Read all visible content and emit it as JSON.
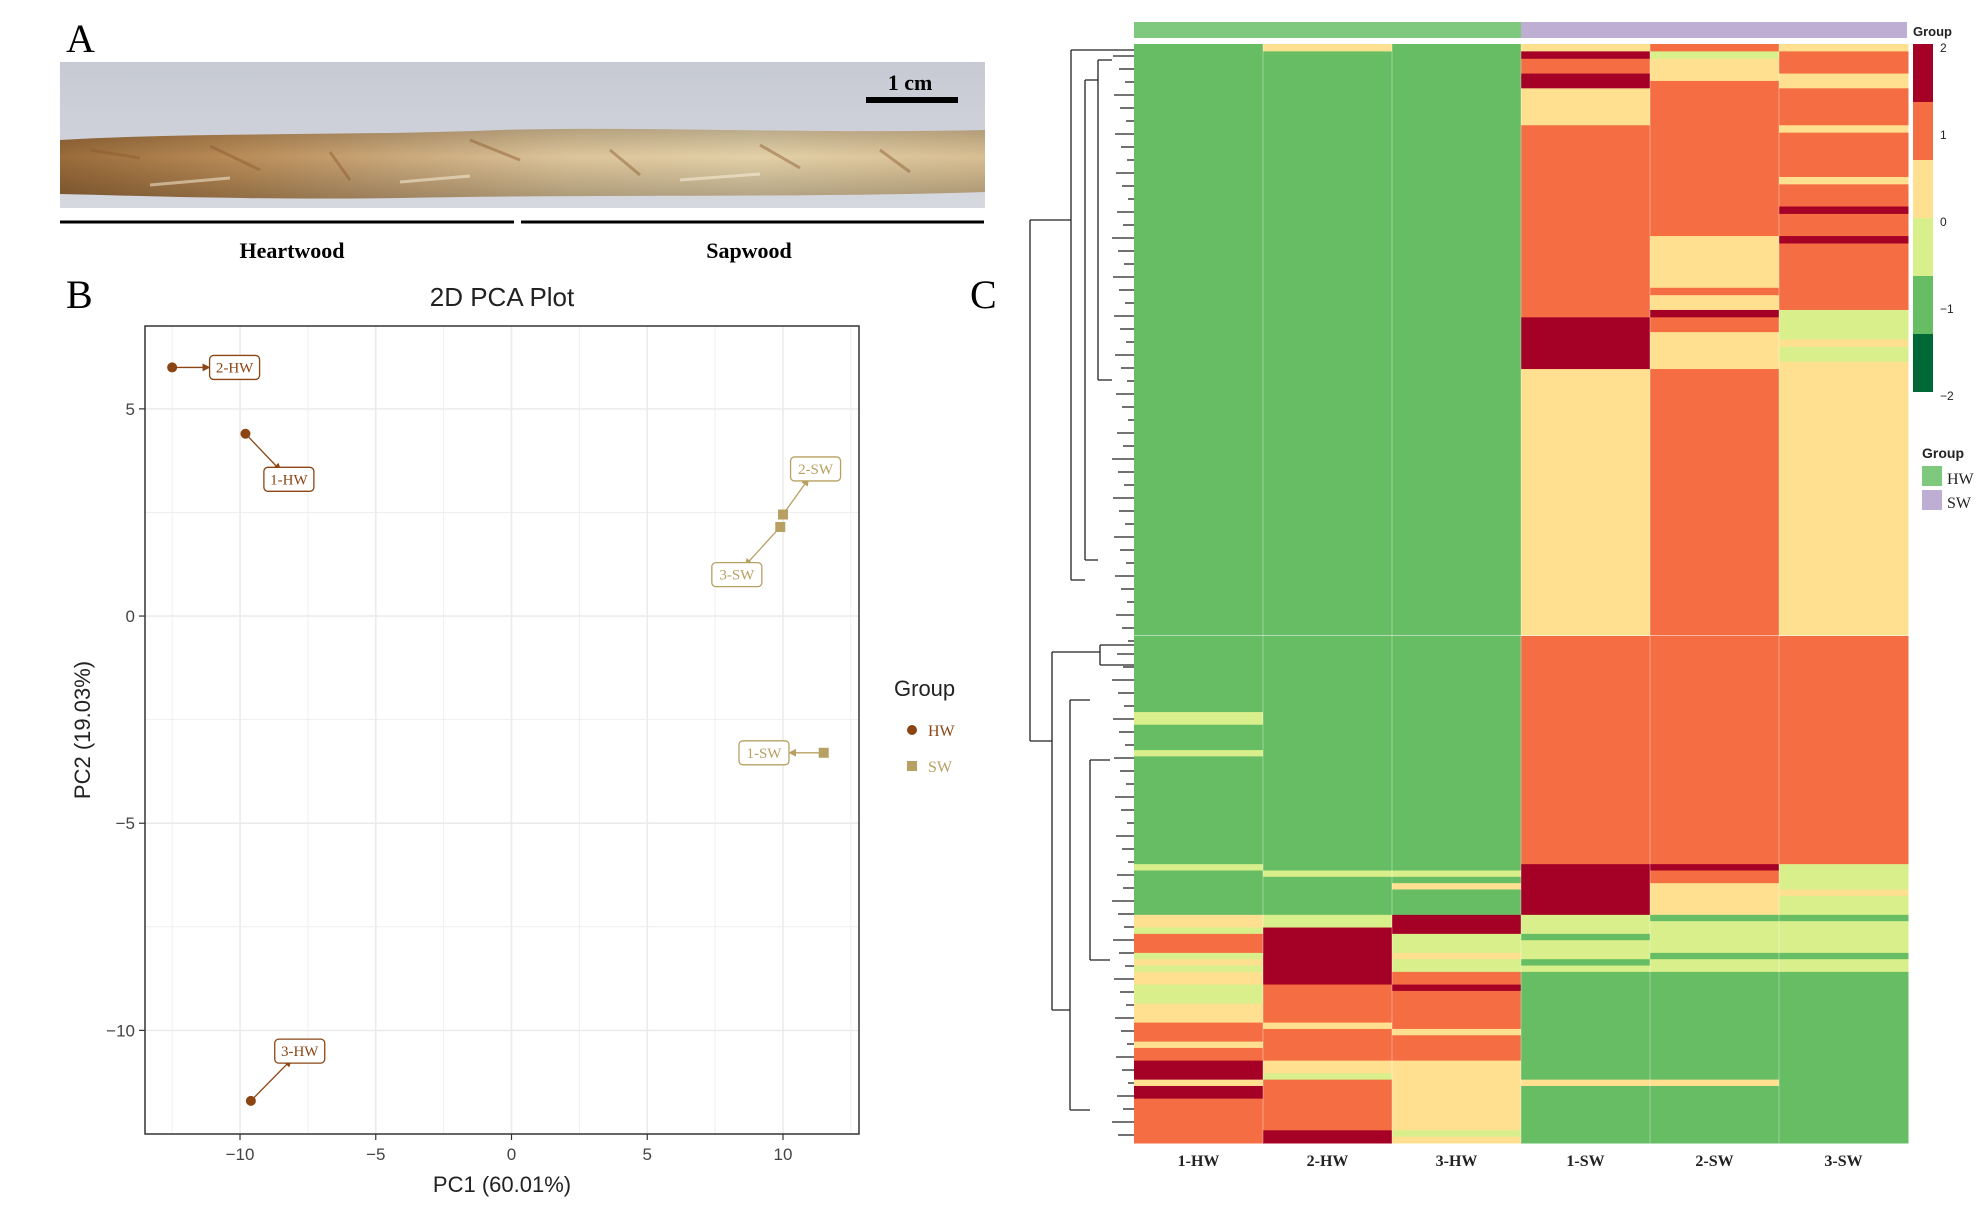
{
  "panels": {
    "a": "A",
    "b": "B",
    "c": "C"
  },
  "photo": {
    "scale_label": "1 cm",
    "regions": [
      "Heartwood",
      "Sapwood"
    ]
  },
  "colors": {
    "hw": "#8B4513",
    "sw": "#B8A062",
    "grid": "#EBEBEB",
    "panel_border": "#333333",
    "heat": {
      "c2": "#A50026",
      "c1": "#F46D43",
      "c0": "#FEE090",
      "cm05": "#D9EF8B",
      "cm1": "#66BD63",
      "cm2": "#006837"
    },
    "group_hw": "#7FC97F",
    "group_sw": "#BEAED4"
  },
  "chart_data": [
    {
      "type": "scatter",
      "title": "2D PCA Plot",
      "xlabel": "PC1 (60.01%)",
      "ylabel": "PC2 (19.03%)",
      "xlim": [
        -13.5,
        12.8
      ],
      "ylim": [
        -12.5,
        7
      ],
      "xticks": [
        -10,
        -5,
        0,
        5,
        10
      ],
      "yticks": [
        5,
        0,
        -5,
        -10
      ],
      "xtick_labels": [
        "−10",
        "−5",
        "0",
        "5",
        "10"
      ],
      "ytick_labels": [
        "5",
        "0",
        "−5",
        "−10"
      ],
      "grid": true,
      "legend_title": "Group",
      "legend_position": "right",
      "series": [
        {
          "name": "HW",
          "shape": "circle",
          "points": [
            {
              "label": "1-HW",
              "x": -9.8,
              "y": 4.4,
              "lx": -8.2,
              "ly": 3.3
            },
            {
              "label": "2-HW",
              "x": -12.5,
              "y": 6.0,
              "lx": -10.2,
              "ly": 6.0
            },
            {
              "label": "3-HW",
              "x": -9.6,
              "y": -11.7,
              "lx": -7.8,
              "ly": -10.5
            }
          ]
        },
        {
          "name": "SW",
          "shape": "square",
          "points": [
            {
              "label": "1-SW",
              "x": 11.5,
              "y": -3.3,
              "lx": 9.3,
              "ly": -3.3
            },
            {
              "label": "2-SW",
              "x": 10.0,
              "y": 2.45,
              "lx": 11.2,
              "ly": 3.55
            },
            {
              "label": "3-SW",
              "x": 9.9,
              "y": 2.15,
              "lx": 8.3,
              "ly": 1.0
            }
          ]
        }
      ]
    },
    {
      "type": "heatmap",
      "columns": [
        "1-HW",
        "2-HW",
        "3-HW",
        "1-SW",
        "2-SW",
        "3-SW"
      ],
      "column_groups": [
        "HW",
        "HW",
        "HW",
        "SW",
        "SW",
        "SW"
      ],
      "group_label": "Group",
      "group_legend": [
        "HW",
        "SW"
      ],
      "colorbar_ticks": [
        "2",
        "1",
        "0",
        "−1",
        "−2"
      ],
      "segments": [
        [
          [
            [
              0,
              1,
              "cm1"
            ],
            [
              80,
              "cm1"
            ]
          ],
          [
            [
              0,
              1,
              "c0"
            ],
            [
              1,
              80,
              "cm1"
            ]
          ],
          [
            [
              0,
              80,
              "cm1"
            ]
          ],
          [
            [
              0,
              1,
              "c0"
            ],
            [
              1,
              2,
              "c2"
            ],
            [
              2,
              4,
              "c1"
            ],
            [
              4,
              6,
              "c2"
            ],
            [
              6,
              11,
              "c0"
            ],
            [
              11,
              12,
              "c1"
            ],
            [
              12,
              37,
              "c1"
            ],
            [
              37,
              44,
              "c2"
            ],
            [
              44,
              80,
              "c0"
            ]
          ],
          [
            [
              0,
              1,
              "c1"
            ],
            [
              1,
              2,
              "cm05"
            ],
            [
              2,
              4,
              "c0"
            ],
            [
              4,
              5,
              "c0"
            ],
            [
              5,
              26,
              "c1"
            ],
            [
              26,
              33,
              "c0"
            ],
            [
              33,
              34,
              "c1"
            ],
            [
              34,
              36,
              "c0"
            ],
            [
              36,
              37,
              "c2"
            ],
            [
              37,
              39,
              "c1"
            ],
            [
              39,
              43,
              "c0"
            ],
            [
              43,
              44,
              "c0"
            ],
            [
              44,
              80,
              "c1"
            ]
          ],
          [
            [
              0,
              1,
              "c0"
            ],
            [
              1,
              4,
              "c1"
            ],
            [
              4,
              6,
              "c0"
            ],
            [
              6,
              11,
              "c1"
            ],
            [
              11,
              12,
              "c0"
            ],
            [
              12,
              18,
              "c1"
            ],
            [
              18,
              19,
              "c0"
            ],
            [
              19,
              22,
              "c1"
            ],
            [
              22,
              23,
              "c2"
            ],
            [
              23,
              26,
              "c1"
            ],
            [
              26,
              27,
              "c2"
            ],
            [
              27,
              36,
              "c1"
            ],
            [
              36,
              40,
              "cm05"
            ],
            [
              40,
              41,
              "c0"
            ],
            [
              41,
              43,
              "cm05"
            ],
            [
              43,
              80,
              "c0"
            ]
          ]
        ],
        [
          [
            [
              0,
              12,
              "cm1"
            ],
            [
              12,
              14,
              "cm05"
            ],
            [
              14,
              18,
              "cm1"
            ],
            [
              18,
              19,
              "cm05"
            ],
            [
              19,
              36,
              "cm1"
            ],
            [
              36,
              37,
              "cm05"
            ],
            [
              37,
              44,
              "cm1"
            ],
            [
              44,
              46,
              "c0"
            ],
            [
              46,
              47,
              "cm05"
            ],
            [
              47,
              50,
              "c1"
            ],
            [
              50,
              51,
              "cm05"
            ],
            [
              51,
              52,
              "c0"
            ],
            [
              52,
              53,
              "cm05"
            ],
            [
              53,
              55,
              "c0"
            ],
            [
              55,
              58,
              "cm05"
            ],
            [
              58,
              61,
              "c0"
            ],
            [
              61,
              64,
              "c1"
            ],
            [
              64,
              65,
              "c0"
            ],
            [
              65,
              67,
              "c1"
            ],
            [
              67,
              70,
              "c2"
            ],
            [
              70,
              71,
              "c0"
            ],
            [
              71,
              73,
              "c2"
            ],
            [
              73,
              80,
              "c1"
            ]
          ],
          [
            [
              0,
              37,
              "cm1"
            ],
            [
              37,
              38,
              "cm05"
            ],
            [
              38,
              44,
              "cm1"
            ],
            [
              44,
              46,
              "cm05"
            ],
            [
              46,
              55,
              "c2"
            ],
            [
              55,
              58,
              "c1"
            ],
            [
              58,
              61,
              "c1"
            ],
            [
              61,
              62,
              "c0"
            ],
            [
              62,
              67,
              "c1"
            ],
            [
              67,
              69,
              "c0"
            ],
            [
              69,
              70,
              "cm05"
            ],
            [
              70,
              78,
              "c1"
            ],
            [
              78,
              80,
              "c2"
            ]
          ],
          [
            [
              0,
              37,
              "cm1"
            ],
            [
              37,
              38,
              "cm05"
            ],
            [
              38,
              39,
              "cm1"
            ],
            [
              39,
              40,
              "c0"
            ],
            [
              40,
              41,
              "cm1"
            ],
            [
              41,
              44,
              "cm1"
            ],
            [
              44,
              47,
              "c2"
            ],
            [
              47,
              50,
              "cm05"
            ],
            [
              50,
              51,
              "c0"
            ],
            [
              51,
              53,
              "cm05"
            ],
            [
              53,
              55,
              "c1"
            ],
            [
              55,
              56,
              "c2"
            ],
            [
              56,
              62,
              "c1"
            ],
            [
              62,
              63,
              "c0"
            ],
            [
              63,
              67,
              "c1"
            ],
            [
              67,
              78,
              "c0"
            ],
            [
              78,
              79,
              "cm05"
            ],
            [
              79,
              80,
              "c0"
            ]
          ],
          [
            [
              0,
              36,
              "c1"
            ],
            [
              36,
              44,
              "c2"
            ],
            [
              44,
              47,
              "cm05"
            ],
            [
              47,
              48,
              "cm1"
            ],
            [
              48,
              50,
              "cm05"
            ],
            [
              50,
              51,
              "cm05"
            ],
            [
              51,
              52,
              "cm1"
            ],
            [
              52,
              53,
              "cm05"
            ],
            [
              53,
              70,
              "cm1"
            ],
            [
              70,
              71,
              "c0"
            ],
            [
              71,
              80,
              "cm1"
            ]
          ],
          [
            [
              0,
              36,
              "c1"
            ],
            [
              36,
              37,
              "c2"
            ],
            [
              37,
              39,
              "c1"
            ],
            [
              39,
              43,
              "c0"
            ],
            [
              43,
              44,
              "c0"
            ],
            [
              44,
              45,
              "cm1"
            ],
            [
              45,
              50,
              "cm05"
            ],
            [
              50,
              51,
              "cm1"
            ],
            [
              51,
              53,
              "cm05"
            ],
            [
              53,
              70,
              "cm1"
            ],
            [
              70,
              71,
              "c0"
            ],
            [
              71,
              80,
              "cm1"
            ]
          ],
          [
            [
              0,
              36,
              "c1"
            ],
            [
              36,
              40,
              "cm05"
            ],
            [
              40,
              41,
              "c0"
            ],
            [
              41,
              44,
              "cm05"
            ],
            [
              44,
              45,
              "cm1"
            ],
            [
              45,
              50,
              "cm05"
            ],
            [
              50,
              51,
              "cm1"
            ],
            [
              51,
              53,
              "cm05"
            ],
            [
              53,
              80,
              "cm1"
            ]
          ]
        ]
      ]
    }
  ]
}
